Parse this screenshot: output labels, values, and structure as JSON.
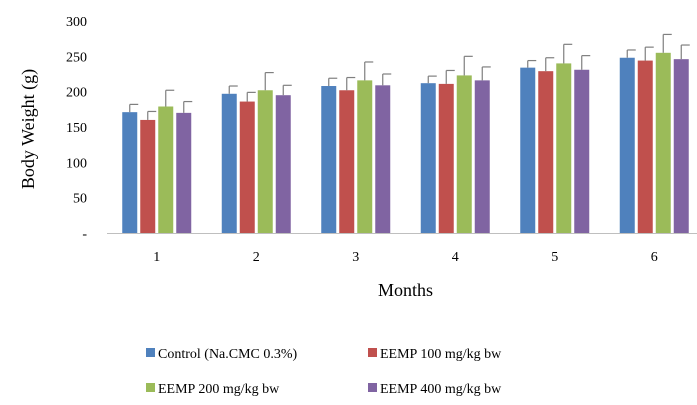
{
  "chart_data": {
    "type": "bar",
    "xlabel": "Months",
    "ylabel": "Body Weight (g)",
    "categories": [
      "1",
      "2",
      "3",
      "4",
      "5",
      "6"
    ],
    "ylim": [
      0,
      300
    ],
    "yticks": [
      {
        "value": 0,
        "label": "-"
      },
      {
        "value": 50,
        "label": "50"
      },
      {
        "value": 100,
        "label": "100"
      },
      {
        "value": 150,
        "label": "150"
      },
      {
        "value": 200,
        "label": "200"
      },
      {
        "value": 250,
        "label": "250"
      },
      {
        "value": 300,
        "label": "300"
      }
    ],
    "grid": false,
    "legend_position": "bottom",
    "series": [
      {
        "name": "Control (Na.CMC 0.3%)",
        "color": "#4f81bd",
        "values": [
          171,
          197,
          208,
          212,
          234,
          248
        ],
        "errors": [
          11,
          11,
          11,
          10,
          10,
          11
        ]
      },
      {
        "name": "EEMP 100 mg/kg bw",
        "color": "#c0504d",
        "values": [
          160,
          186,
          202,
          211,
          229,
          244
        ],
        "errors": [
          12,
          13,
          18,
          19,
          19,
          19
        ]
      },
      {
        "name": "EEMP 200 mg/kg bw",
        "color": "#9bbb59",
        "values": [
          179,
          202,
          216,
          223,
          240,
          255
        ],
        "errors": [
          23,
          25,
          26,
          27,
          27,
          26
        ]
      },
      {
        "name": "EEMP 400 mg/kg bw",
        "color": "#8064a2",
        "values": [
          170,
          195,
          209,
          216,
          231,
          246
        ],
        "errors": [
          16,
          14,
          16,
          19,
          20,
          20
        ]
      }
    ]
  }
}
